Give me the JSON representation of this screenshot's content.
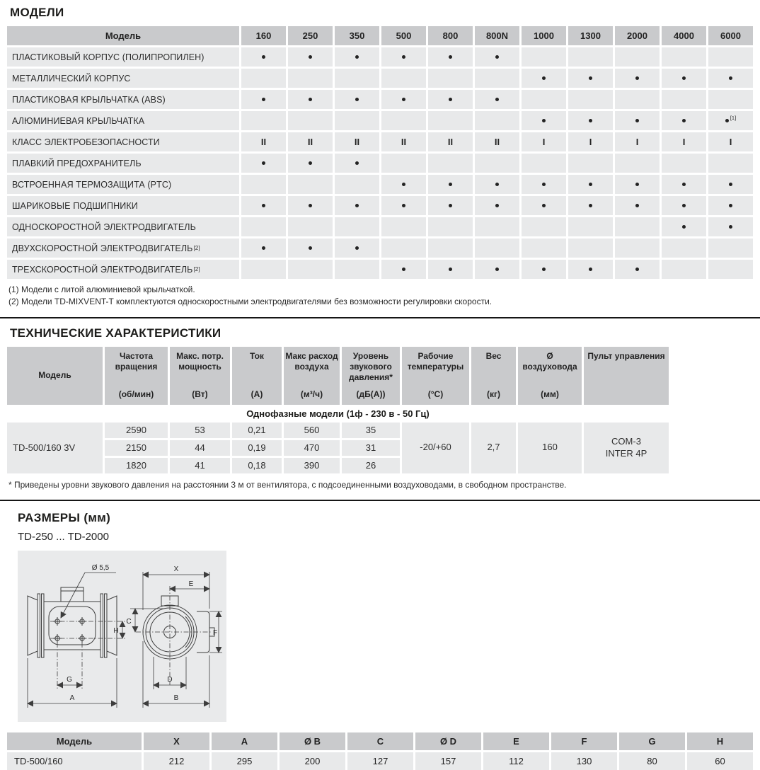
{
  "colors": {
    "table_header_bg": "#c9cacc",
    "table_row_bg": "#e8e9ea",
    "text": "#232323",
    "separator": "#161616",
    "drawing_panel_bg": "#e9eaeb"
  },
  "models_section": {
    "title": "МОДЕЛИ",
    "table": {
      "corner_header": "Модель",
      "model_columns": [
        "160",
        "250",
        "350",
        "500",
        "800",
        "800N",
        "1000",
        "1300",
        "2000",
        "4000",
        "6000"
      ],
      "rows": [
        {
          "label": "ПЛАСТИКОВЫЙ КОРПУС (ПОЛИПРОПИЛЕН)",
          "sup": "",
          "cells": [
            "•",
            "•",
            "•",
            "•",
            "•",
            "•",
            "",
            "",
            "",
            "",
            ""
          ]
        },
        {
          "label": "МЕТАЛЛИЧЕСКИЙ КОРПУС",
          "sup": "",
          "cells": [
            "",
            "",
            "",
            "",
            "",
            "",
            "•",
            "•",
            "•",
            "•",
            "•"
          ]
        },
        {
          "label": "ПЛАСТИКОВАЯ КРЫЛЬЧАТКА (ABS)",
          "sup": "",
          "cells": [
            "•",
            "•",
            "•",
            "•",
            "•",
            "•",
            "",
            "",
            "",
            "",
            ""
          ]
        },
        {
          "label": "АЛЮМИНИЕВАЯ КРЫЛЬЧАТКА",
          "sup": "",
          "cells": [
            "",
            "",
            "",
            "",
            "",
            "",
            "•",
            "•",
            "•",
            "•",
            "•[1]"
          ]
        },
        {
          "label": "КЛАСС ЭЛЕКТРОБЕЗОПАСНОСТИ",
          "sup": "",
          "cells": [
            "II",
            "II",
            "II",
            "II",
            "II",
            "II",
            "I",
            "I",
            "I",
            "I",
            "I"
          ]
        },
        {
          "label": "ПЛАВКИЙ ПРЕДОХРАНИТЕЛЬ",
          "sup": "",
          "cells": [
            "•",
            "•",
            "•",
            "",
            "",
            "",
            "",
            "",
            "",
            "",
            ""
          ]
        },
        {
          "label": "ВСТРОЕННАЯ ТЕРМОЗАЩИТА (PTC)",
          "sup": "",
          "cells": [
            "",
            "",
            "",
            "•",
            "•",
            "•",
            "•",
            "•",
            "•",
            "•",
            "•"
          ]
        },
        {
          "label": "ШАРИКОВЫЕ ПОДШИПНИКИ",
          "sup": "",
          "cells": [
            "•",
            "•",
            "•",
            "•",
            "•",
            "•",
            "•",
            "•",
            "•",
            "•",
            "•"
          ]
        },
        {
          "label": "ОДНОСКОРОСТНОЙ ЭЛЕКТРОДВИГАТЕЛЬ",
          "sup": "",
          "cells": [
            "",
            "",
            "",
            "",
            "",
            "",
            "",
            "",
            "",
            "•",
            "•"
          ]
        },
        {
          "label": "ДВУХСКОРОСТНОЙ ЭЛЕКТРОДВИГАТЕЛЬ",
          "sup": "[2]",
          "cells": [
            "•",
            "•",
            "•",
            "",
            "",
            "",
            "",
            "",
            "",
            "",
            ""
          ]
        },
        {
          "label": "ТРЕХСКОРОСТНОЙ ЭЛЕКТРОДВИГАТЕЛЬ",
          "sup": "[2]",
          "cells": [
            "",
            "",
            "",
            "•",
            "•",
            "•",
            "•",
            "•",
            "•",
            "",
            ""
          ]
        }
      ]
    },
    "footnotes": [
      "(1) Модели с литой алюминиевой крыльчаткой.",
      "(2) Модели TD-MIXVENT-T комплектуются односкоростными электродвигателями без возможности регулировки скорости."
    ]
  },
  "tech_section": {
    "title": "ТЕХНИЧЕСКИЕ ХАРАКТЕРИСТИКИ",
    "table": {
      "columns": [
        {
          "name": "Модель",
          "unit": ""
        },
        {
          "name": "Частота вращения",
          "unit": "(об/мин)"
        },
        {
          "name": "Макс. потр. мощность",
          "unit": "(Вт)"
        },
        {
          "name": "Ток",
          "unit": "(А)"
        },
        {
          "name": "Макс расход воздуха",
          "unit": "(м³/ч)"
        },
        {
          "name": "Уровень звукового давления*",
          "unit": "(дБ(А))"
        },
        {
          "name": "Рабочие температуры",
          "unit": "(°C)"
        },
        {
          "name": "Вес",
          "unit": "(кг)"
        },
        {
          "name": "Ø воздуховода",
          "unit": "(мм)"
        },
        {
          "name": "Пульт управления",
          "unit": ""
        }
      ],
      "group_title": "Однофазные модели (1ф - 230 в - 50 Гц)",
      "model": "TD-500/160 3V",
      "speed_rows": [
        [
          "2590",
          "53",
          "0,21",
          "560",
          "35"
        ],
        [
          "2150",
          "44",
          "0,19",
          "470",
          "31"
        ],
        [
          "1820",
          "41",
          "0,18",
          "390",
          "26"
        ]
      ],
      "merged_cells": [
        [
          "-20/+60"
        ],
        [
          "2,7"
        ],
        [
          "160"
        ],
        [
          "COM-3",
          "INTER 4P"
        ]
      ]
    },
    "footnote": "* Приведены уровни звукового давления на расстоянии 3 м от вентилятора, с подсоединенными воздуховодами, в свободном пространстве."
  },
  "dimensions_section": {
    "title": "РАЗМЕРЫ (мм)",
    "subtitle": "TD-250 ... TD-2000",
    "drawing": {
      "labels": {
        "hole_diameter": "Ø 5,5",
        "x": "X",
        "e": "E",
        "c": "C",
        "f": "F",
        "h": "H",
        "g": "G",
        "a": "A",
        "d": "D",
        "b": "B"
      }
    },
    "table": {
      "headers": [
        "Модель",
        "X",
        "A",
        "Ø B",
        "C",
        "Ø D",
        "E",
        "F",
        "G",
        "H"
      ],
      "rows": [
        [
          "TD-500/160",
          "212",
          "295",
          "200",
          "127",
          "157",
          "112",
          "130",
          "80",
          "60"
        ]
      ]
    }
  }
}
